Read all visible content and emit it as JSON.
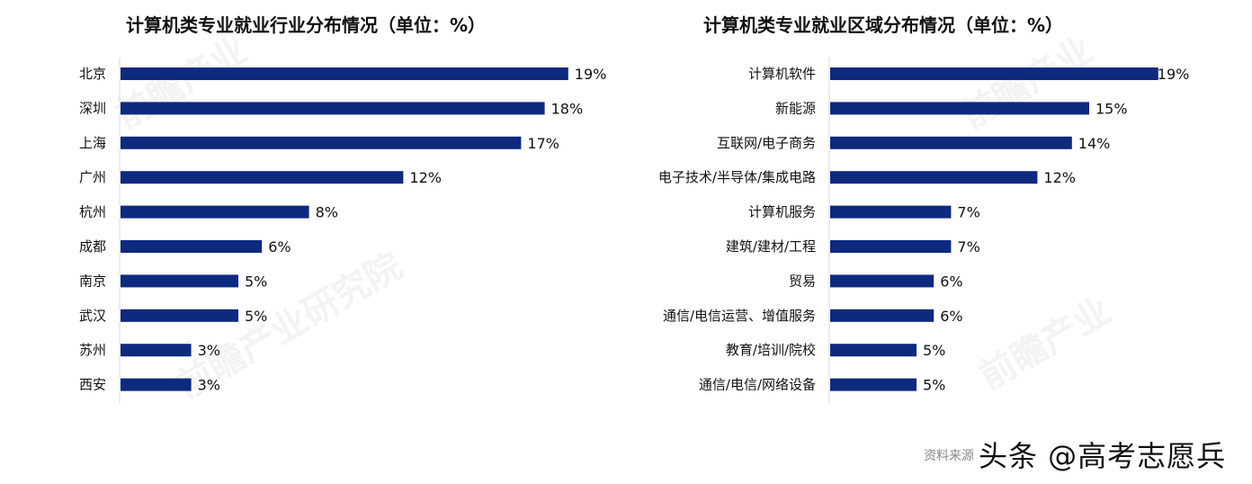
{
  "chart_data": [
    {
      "type": "bar",
      "orientation": "horizontal",
      "title": "计算机类专业就业行业分布情况（单位：%）",
      "categories": [
        "北京",
        "深圳",
        "上海",
        "广州",
        "杭州",
        "成都",
        "南京",
        "武汉",
        "苏州",
        "西安"
      ],
      "values": [
        19,
        18,
        17,
        12,
        8,
        6,
        5,
        5,
        3,
        3
      ],
      "data_labels": [
        "19%",
        "18%",
        "17%",
        "12%",
        "8%",
        "6%",
        "5%",
        "5%",
        "3%",
        "3%"
      ],
      "xlabel": "",
      "ylabel": "",
      "grid": false,
      "color": "#0d2a7f"
    },
    {
      "type": "bar",
      "orientation": "horizontal",
      "title": "计算机类专业就业区域分布情况（单位：%）",
      "categories": [
        "计算机软件",
        "新能源",
        "互联网/电子商务",
        "电子技术/半导体/集成电路",
        "计算机服务",
        "建筑/建材/工程",
        "贸易",
        "通信/电信运营、增值服务",
        "教育/培训/院校",
        "通信/电信/网络设备"
      ],
      "values": [
        19,
        15,
        14,
        12,
        7,
        7,
        6,
        6,
        5,
        5
      ],
      "data_labels": [
        "19%",
        "15%",
        "14%",
        "12%",
        "7%",
        "7%",
        "6%",
        "6%",
        "5%",
        "5%"
      ],
      "xlabel": "",
      "ylabel": "",
      "grid": false,
      "color": "#0d2a7f"
    }
  ],
  "footer": {
    "source": "资料来源",
    "watermark": "头条 @高考志愿兵"
  },
  "logo_watermark": "前瞻产业研究院"
}
